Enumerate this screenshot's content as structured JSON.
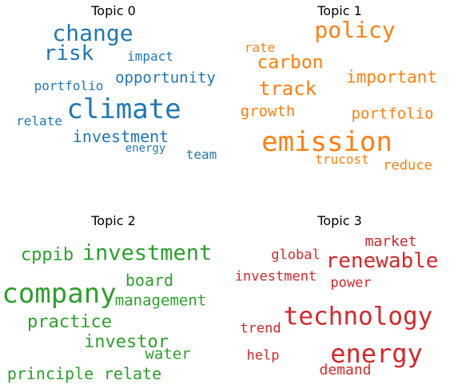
{
  "chart_data": [
    {
      "type": "wordcloud",
      "title": "Topic 0",
      "color": "#1f77b4",
      "words": [
        "climate",
        "change",
        "risk",
        "opportunity",
        "investment",
        "impact",
        "portfolio",
        "relate",
        "team",
        "energy"
      ]
    },
    {
      "type": "wordcloud",
      "title": "Topic 1",
      "color": "#ff7f0e",
      "words": [
        "emission",
        "policy",
        "carbon",
        "track",
        "important",
        "rate",
        "growth",
        "portfolio",
        "trucost",
        "reduce"
      ]
    },
    {
      "type": "wordcloud",
      "title": "Topic 2",
      "color": "#2ca02c",
      "words": [
        "company",
        "investment",
        "cppib",
        "board",
        "management",
        "practice",
        "investor",
        "water",
        "principle",
        "relate"
      ]
    },
    {
      "type": "wordcloud",
      "title": "Topic 3",
      "color": "#d62728",
      "words": [
        "energy",
        "technology",
        "renewable",
        "market",
        "global",
        "investment",
        "power",
        "trend",
        "help",
        "demand"
      ]
    }
  ]
}
